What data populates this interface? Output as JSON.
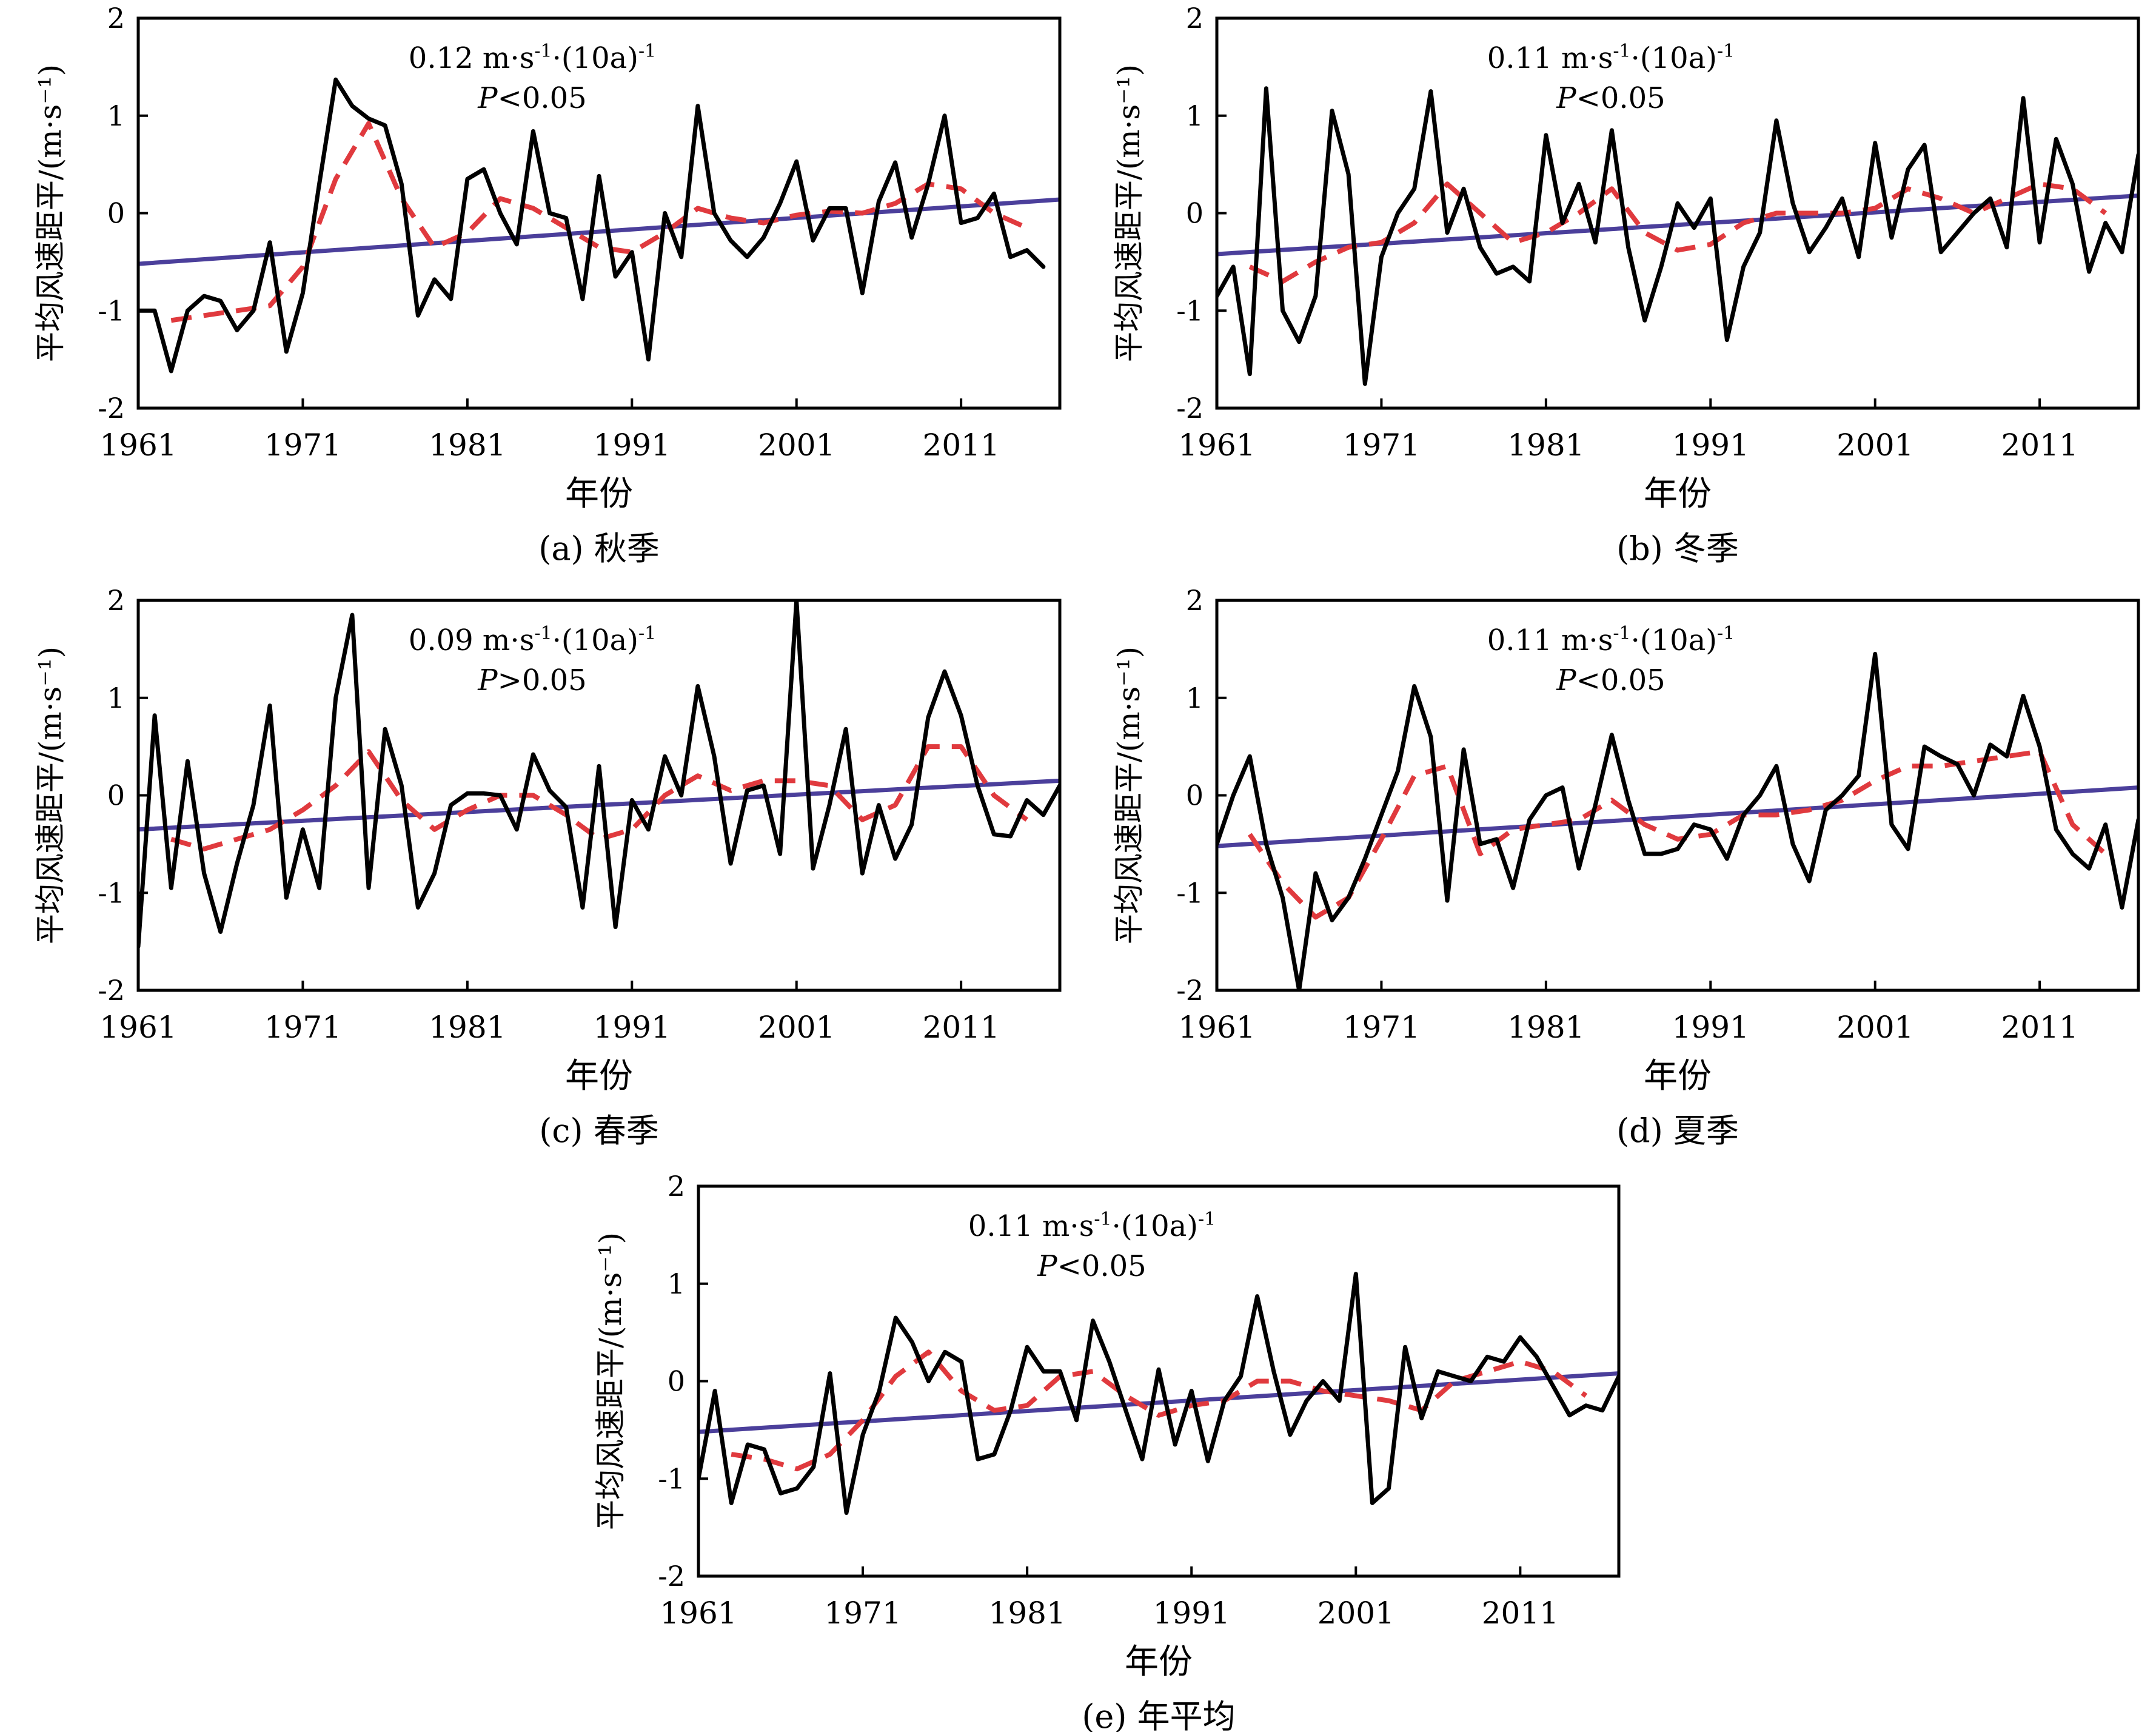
{
  "figure": {
    "xlabel": "年份",
    "ylabel": "平均风速距平/(m·s⁻¹)"
  },
  "chart_data": [
    {
      "id": "a",
      "type": "line",
      "caption": "(a) 秋季",
      "annotation": {
        "trend_prefix": "0.12 m·s",
        "sup1": "-1",
        "mid": "·(10a)",
        "sup2": "-1",
        "p_letter": "P",
        "p_rest": "<0.05"
      },
      "xlabel": "年份",
      "ylabel": "平均风速距平/(m·s⁻¹)",
      "xlim": [
        1961,
        2017
      ],
      "ylim": [
        -2,
        2
      ],
      "xticks": [
        "1961",
        "1971",
        "1981",
        "1991",
        "2001",
        "2011"
      ],
      "yticks": [
        "-2",
        "-1",
        "0",
        "1",
        "2"
      ],
      "colors": {
        "anomaly": "#000000",
        "smooth": "#e03a3e",
        "trend": "#4b3f9b"
      },
      "trend": {
        "x": [
          1961,
          2017
        ],
        "y": [
          -0.52,
          0.14
        ]
      },
      "anomaly": {
        "x_start": 1961,
        "values": [
          -1.0,
          -1.0,
          -1.62,
          -1.0,
          -0.85,
          -0.9,
          -1.2,
          -1.0,
          -0.3,
          -1.42,
          -0.82,
          0.3,
          1.37,
          1.1,
          0.97,
          0.9,
          0.3,
          -1.05,
          -0.68,
          -0.88,
          0.35,
          0.45,
          0.0,
          -0.32,
          0.84,
          0.0,
          -0.05,
          -0.88,
          0.38,
          -0.65,
          -0.4,
          -1.5,
          0.0,
          -0.45,
          1.1,
          0.0,
          -0.28,
          -0.45,
          -0.25,
          0.1,
          0.53,
          -0.28,
          0.05,
          0.05,
          -0.82,
          0.12,
          0.52,
          -0.25,
          0.3,
          1.0,
          -0.1,
          -0.05,
          0.2,
          -0.45,
          -0.38,
          -0.55
        ]
      },
      "smooth": {
        "x": [
          1963,
          1965,
          1967,
          1969,
          1971,
          1973,
          1975,
          1977,
          1979,
          1981,
          1983,
          1985,
          1987,
          1989,
          1991,
          1993,
          1995,
          1997,
          1999,
          2001,
          2003,
          2005,
          2007,
          2009,
          2011,
          2013,
          2015
        ],
        "y": [
          -1.1,
          -1.05,
          -1.0,
          -0.95,
          -0.55,
          0.35,
          0.92,
          0.15,
          -0.35,
          -0.2,
          0.15,
          0.05,
          -0.15,
          -0.35,
          -0.4,
          -0.2,
          0.05,
          -0.05,
          -0.1,
          -0.02,
          0.02,
          0.0,
          0.1,
          0.3,
          0.25,
          0.0,
          -0.15
        ]
      }
    },
    {
      "id": "b",
      "type": "line",
      "caption": "(b) 冬季",
      "annotation": {
        "trend_prefix": "0.11 m·s",
        "sup1": "-1",
        "mid": "·(10a)",
        "sup2": "-1",
        "p_letter": "P",
        "p_rest": "<0.05"
      },
      "xlabel": "年份",
      "ylabel": "平均风速距平/(m·s⁻¹)",
      "xlim": [
        1961,
        2017
      ],
      "ylim": [
        -2,
        2
      ],
      "xticks": [
        "1961",
        "1971",
        "1981",
        "1991",
        "2001",
        "2011"
      ],
      "yticks": [
        "-2",
        "-1",
        "0",
        "1",
        "2"
      ],
      "colors": {
        "anomaly": "#000000",
        "smooth": "#e03a3e",
        "trend": "#4b3f9b"
      },
      "trend": {
        "x": [
          1961,
          2017
        ],
        "y": [
          -0.42,
          0.18
        ]
      },
      "anomaly": {
        "x_start": 1961,
        "values": [
          -0.85,
          -0.55,
          -1.65,
          1.28,
          -1.0,
          -1.32,
          -0.85,
          1.05,
          0.4,
          -1.75,
          -0.45,
          0.0,
          0.25,
          1.25,
          -0.2,
          0.25,
          -0.35,
          -0.62,
          -0.55,
          -0.7,
          0.8,
          -0.1,
          0.3,
          -0.3,
          0.85,
          -0.35,
          -1.1,
          -0.55,
          0.1,
          -0.15,
          0.15,
          -1.3,
          -0.55,
          -0.2,
          0.95,
          0.1,
          -0.4,
          -0.15,
          0.15,
          -0.45,
          0.72,
          -0.25,
          0.45,
          0.7,
          -0.4,
          -0.2,
          0.0,
          0.15,
          -0.35,
          1.18,
          -0.3,
          0.76,
          0.3,
          -0.6,
          -0.1,
          -0.4,
          0.6
        ]
      },
      "smooth": {
        "x": [
          1963,
          1965,
          1967,
          1969,
          1971,
          1973,
          1975,
          1977,
          1979,
          1981,
          1983,
          1985,
          1987,
          1989,
          1991,
          1993,
          1995,
          1997,
          1999,
          2001,
          2003,
          2005,
          2007,
          2009,
          2011,
          2013,
          2015
        ],
        "y": [
          -0.55,
          -0.7,
          -0.5,
          -0.35,
          -0.3,
          -0.1,
          0.3,
          0.0,
          -0.3,
          -0.2,
          0.0,
          0.25,
          -0.2,
          -0.38,
          -0.32,
          -0.1,
          0.0,
          0.0,
          0.0,
          0.05,
          0.25,
          0.15,
          0.0,
          0.15,
          0.3,
          0.25,
          0.0
        ]
      }
    },
    {
      "id": "c",
      "type": "line",
      "caption": "(c) 春季",
      "annotation": {
        "trend_prefix": "0.09 m·s",
        "sup1": "-1",
        "mid": "·(10a)",
        "sup2": "-1",
        "p_letter": "P",
        "p_rest": ">0.05"
      },
      "xlabel": "年份",
      "ylabel": "平均风速距平/(m·s⁻¹)",
      "xlim": [
        1961,
        2017
      ],
      "ylim": [
        -2,
        2
      ],
      "xticks": [
        "1961",
        "1971",
        "1981",
        "1991",
        "2001",
        "2011"
      ],
      "yticks": [
        "-2",
        "-1",
        "0",
        "1",
        "2"
      ],
      "colors": {
        "anomaly": "#000000",
        "smooth": "#e03a3e",
        "trend": "#4b3f9b"
      },
      "trend": {
        "x": [
          1961,
          2017
        ],
        "y": [
          -0.35,
          0.15
        ]
      },
      "anomaly": {
        "x_start": 1961,
        "values": [
          -1.55,
          0.82,
          -0.95,
          0.35,
          -0.8,
          -1.4,
          -0.7,
          -0.1,
          0.92,
          -1.05,
          -0.35,
          -0.95,
          1.0,
          1.85,
          -0.95,
          0.68,
          0.1,
          -1.15,
          -0.8,
          -0.1,
          0.02,
          0.02,
          0.0,
          -0.35,
          0.42,
          0.05,
          -0.12,
          -1.15,
          0.3,
          -1.35,
          -0.05,
          -0.35,
          0.4,
          0.0,
          1.12,
          0.4,
          -0.7,
          0.05,
          0.1,
          -0.6,
          2.0,
          -0.75,
          -0.1,
          0.68,
          -0.8,
          -0.1,
          -0.65,
          -0.3,
          0.8,
          1.27,
          0.82,
          0.1,
          -0.4,
          -0.42,
          -0.05,
          -0.2,
          0.1
        ]
      },
      "smooth": {
        "x": [
          1963,
          1965,
          1967,
          1969,
          1971,
          1973,
          1975,
          1977,
          1979,
          1981,
          1983,
          1985,
          1987,
          1989,
          1991,
          1993,
          1995,
          1997,
          1999,
          2001,
          2003,
          2005,
          2007,
          2009,
          2011,
          2013,
          2015
        ],
        "y": [
          -0.45,
          -0.55,
          -0.45,
          -0.35,
          -0.15,
          0.1,
          0.45,
          -0.05,
          -0.35,
          -0.15,
          0.0,
          0.0,
          -0.2,
          -0.45,
          -0.35,
          0.0,
          0.2,
          0.05,
          0.15,
          0.15,
          0.1,
          -0.25,
          -0.1,
          0.5,
          0.5,
          0.0,
          -0.25
        ]
      }
    },
    {
      "id": "d",
      "type": "line",
      "caption": "(d) 夏季",
      "annotation": {
        "trend_prefix": "0.11 m·s",
        "sup1": "-1",
        "mid": "·(10a)",
        "sup2": "-1",
        "p_letter": "P",
        "p_rest": "<0.05"
      },
      "xlabel": "年份",
      "ylabel": "平均风速距平/(m·s⁻¹)",
      "xlim": [
        1961,
        2017
      ],
      "ylim": [
        -2,
        2
      ],
      "xticks": [
        "1961",
        "1971",
        "1981",
        "1991",
        "2001",
        "2011"
      ],
      "yticks": [
        "-2",
        "-1",
        "0",
        "1",
        "2"
      ],
      "colors": {
        "anomaly": "#000000",
        "smooth": "#e03a3e",
        "trend": "#4b3f9b"
      },
      "trend": {
        "x": [
          1961,
          2017
        ],
        "y": [
          -0.52,
          0.08
        ]
      },
      "anomaly": {
        "x_start": 1961,
        "values": [
          -0.5,
          0.0,
          0.4,
          -0.5,
          -1.05,
          -2.0,
          -0.8,
          -1.28,
          -1.05,
          -0.65,
          -0.2,
          0.25,
          1.12,
          0.6,
          -1.08,
          0.47,
          -0.5,
          -0.45,
          -0.95,
          -0.25,
          0.0,
          0.08,
          -0.75,
          -0.1,
          0.62,
          -0.05,
          -0.6,
          -0.6,
          -0.55,
          -0.3,
          -0.35,
          -0.65,
          -0.2,
          0.0,
          0.3,
          -0.5,
          -0.88,
          -0.15,
          0.0,
          0.2,
          1.45,
          -0.3,
          -0.55,
          0.5,
          0.4,
          0.32,
          0.0,
          0.52,
          0.4,
          1.02,
          0.5,
          -0.35,
          -0.6,
          -0.75,
          -0.3,
          -1.15,
          -0.25
        ]
      },
      "smooth": {
        "x": [
          1963,
          1965,
          1967,
          1969,
          1971,
          1973,
          1975,
          1977,
          1979,
          1981,
          1983,
          1985,
          1987,
          1989,
          1991,
          1993,
          1995,
          1997,
          1999,
          2001,
          2003,
          2005,
          2007,
          2009,
          2011,
          2013,
          2015
        ],
        "y": [
          -0.4,
          -0.9,
          -1.25,
          -1.05,
          -0.45,
          0.2,
          0.3,
          -0.6,
          -0.35,
          -0.3,
          -0.25,
          -0.05,
          -0.3,
          -0.45,
          -0.4,
          -0.2,
          -0.2,
          -0.15,
          -0.05,
          0.15,
          0.3,
          0.3,
          0.35,
          0.4,
          0.45,
          -0.3,
          -0.6
        ]
      }
    },
    {
      "id": "e",
      "type": "line",
      "caption": "(e) 年平均",
      "annotation": {
        "trend_prefix": "0.11 m·s",
        "sup1": "-1",
        "mid": "·(10a)",
        "sup2": "-1",
        "p_letter": "P",
        "p_rest": "<0.05"
      },
      "xlabel": "年份",
      "ylabel": "平均风速距平/(m·s⁻¹)",
      "xlim": [
        1961,
        2017
      ],
      "ylim": [
        -2,
        2
      ],
      "xticks": [
        "1961",
        "1971",
        "1981",
        "1991",
        "2001",
        "2011"
      ],
      "yticks": [
        "-2",
        "-1",
        "0",
        "1",
        "2"
      ],
      "colors": {
        "anomaly": "#000000",
        "smooth": "#e03a3e",
        "trend": "#4b3f9b"
      },
      "trend": {
        "x": [
          1961,
          2017
        ],
        "y": [
          -0.52,
          0.08
        ]
      },
      "anomaly": {
        "x_start": 1961,
        "values": [
          -1.0,
          -0.1,
          -1.25,
          -0.65,
          -0.7,
          -1.15,
          -1.1,
          -0.88,
          0.08,
          -1.35,
          -0.55,
          -0.1,
          0.65,
          0.4,
          0.0,
          0.3,
          0.2,
          -0.8,
          -0.75,
          -0.3,
          0.35,
          0.1,
          0.1,
          -0.4,
          0.62,
          0.2,
          -0.3,
          -0.8,
          0.12,
          -0.65,
          -0.1,
          -0.82,
          -0.2,
          0.05,
          0.87,
          0.1,
          -0.55,
          -0.2,
          0.0,
          -0.2,
          1.1,
          -1.25,
          -1.1,
          0.35,
          -0.38,
          0.1,
          0.05,
          0.0,
          0.25,
          0.2,
          0.45,
          0.25,
          -0.05,
          -0.35,
          -0.25,
          -0.3,
          0.05
        ]
      },
      "smooth": {
        "x": [
          1963,
          1965,
          1967,
          1969,
          1971,
          1973,
          1975,
          1977,
          1979,
          1981,
          1983,
          1985,
          1987,
          1989,
          1991,
          1993,
          1995,
          1997,
          1999,
          2001,
          2003,
          2005,
          2007,
          2009,
          2011,
          2013,
          2015
        ],
        "y": [
          -0.75,
          -0.8,
          -0.9,
          -0.75,
          -0.4,
          0.05,
          0.3,
          -0.1,
          -0.3,
          -0.25,
          0.05,
          0.1,
          -0.15,
          -0.35,
          -0.25,
          -0.2,
          0.0,
          0.0,
          -0.1,
          -0.15,
          -0.2,
          -0.3,
          0.0,
          0.1,
          0.2,
          0.1,
          -0.15
        ]
      }
    }
  ]
}
